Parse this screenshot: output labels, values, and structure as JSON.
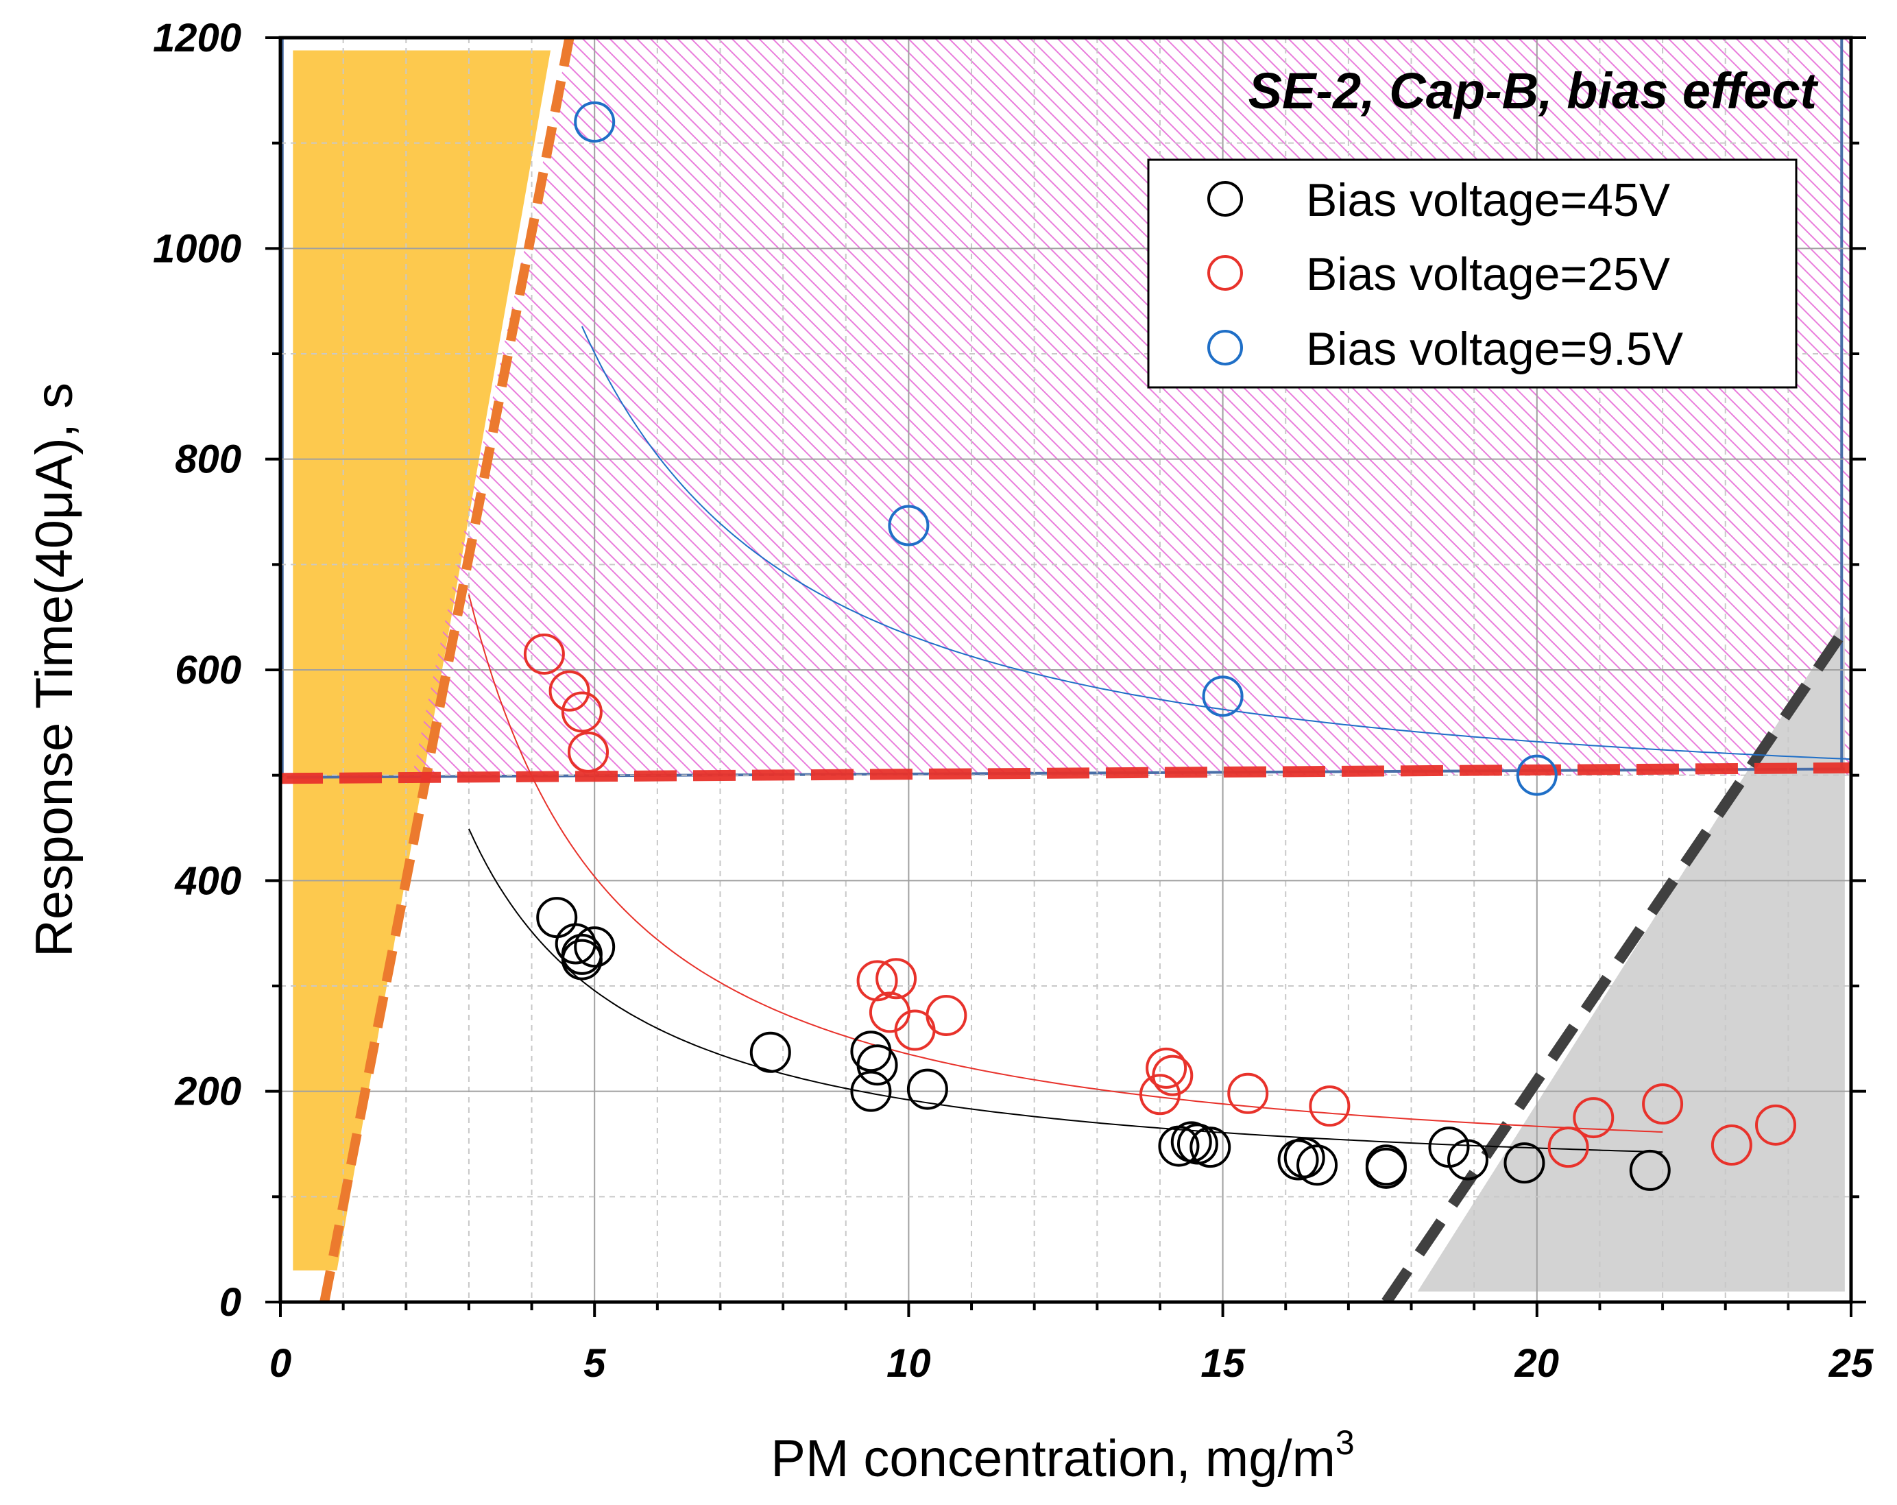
{
  "chart_data": {
    "type": "scatter",
    "title": "",
    "annotation": "SE-2, Cap-B, bias effect",
    "xlabel_main": "PM concentration, mg/m",
    "xlabel_sup": "3",
    "ylabel": "Response Time(40μA), s",
    "xlim": [
      0,
      25
    ],
    "ylim": [
      0,
      1200
    ],
    "x_ticks": [
      "0",
      "5",
      "10",
      "15",
      "20",
      "25"
    ],
    "y_ticks": [
      "0",
      "200",
      "400",
      "600",
      "800",
      "1000",
      "1200"
    ],
    "grid": true,
    "legend_position": "top-right",
    "series": [
      {
        "name": "Bias voltage=45V",
        "color": "#000000",
        "points": [
          [
            4.4,
            365
          ],
          [
            4.7,
            340
          ],
          [
            4.8,
            325
          ],
          [
            4.8,
            330
          ],
          [
            5.0,
            337
          ],
          [
            7.8,
            237
          ],
          [
            9.4,
            238
          ],
          [
            9.5,
            225
          ],
          [
            9.4,
            200
          ],
          [
            10.3,
            202
          ],
          [
            14.3,
            148
          ],
          [
            14.6,
            150
          ],
          [
            14.5,
            152
          ],
          [
            14.8,
            147
          ],
          [
            16.2,
            135
          ],
          [
            16.3,
            137
          ],
          [
            16.5,
            130
          ],
          [
            17.6,
            127
          ],
          [
            17.6,
            130
          ],
          [
            18.6,
            147
          ],
          [
            18.9,
            135
          ],
          [
            19.8,
            132
          ],
          [
            21.8,
            125
          ]
        ],
        "fit": {
          "model": "y = 110 + 1240/x^1.18",
          "x_range": [
            3,
            22
          ]
        }
      },
      {
        "name": "Bias voltage=25V",
        "color": "#e8322b",
        "points": [
          [
            4.2,
            615
          ],
          [
            4.6,
            580
          ],
          [
            4.8,
            560
          ],
          [
            4.9,
            522
          ],
          [
            9.5,
            305
          ],
          [
            9.8,
            307
          ],
          [
            9.7,
            275
          ],
          [
            10.1,
            258
          ],
          [
            10.6,
            272
          ],
          [
            14.0,
            197
          ],
          [
            14.1,
            222
          ],
          [
            14.2,
            215
          ],
          [
            15.4,
            198
          ],
          [
            16.7,
            186
          ],
          [
            20.5,
            147
          ],
          [
            20.9,
            175
          ],
          [
            22.0,
            188
          ],
          [
            23.1,
            149
          ],
          [
            23.8,
            168
          ]
        ],
        "fit": {
          "model": "y = 120 + 2300/x^1.3",
          "x_range": [
            3,
            22
          ]
        }
      },
      {
        "name": "Bias voltage=9.5V",
        "color": "#1f6fc7",
        "points": [
          [
            5,
            1120
          ],
          [
            10,
            737
          ],
          [
            15,
            575
          ],
          [
            20,
            500
          ]
        ],
        "fit": {
          "model": "y = 470 + 4100/x^1.4",
          "x_range": [
            4.8,
            25
          ]
        }
      }
    ],
    "shaded_regions": [
      {
        "name": "low-concentration region (orange)",
        "color": "#fdc94e"
      },
      {
        "name": "high response-time region (magenta hatch)",
        "color": "#e87fe0",
        "y_from": 500,
        "y_to": 1200
      },
      {
        "name": "high-concentration region (grey)",
        "color": "#d3d3d3"
      }
    ],
    "reference_lines": [
      {
        "name": "response-time threshold",
        "style": "dashed",
        "color": "#e8322b",
        "from": [
          0,
          497
        ],
        "to": [
          25,
          507
        ]
      },
      {
        "name": "left boundary",
        "style": "dashed",
        "color": "#ec7a2e",
        "from": [
          0.7,
          0
        ],
        "to": [
          4.6,
          1200
        ]
      },
      {
        "name": "right boundary",
        "style": "dashed",
        "color": "#404040",
        "from": [
          17.6,
          0
        ],
        "to": [
          24.8,
          630
        ]
      }
    ]
  }
}
